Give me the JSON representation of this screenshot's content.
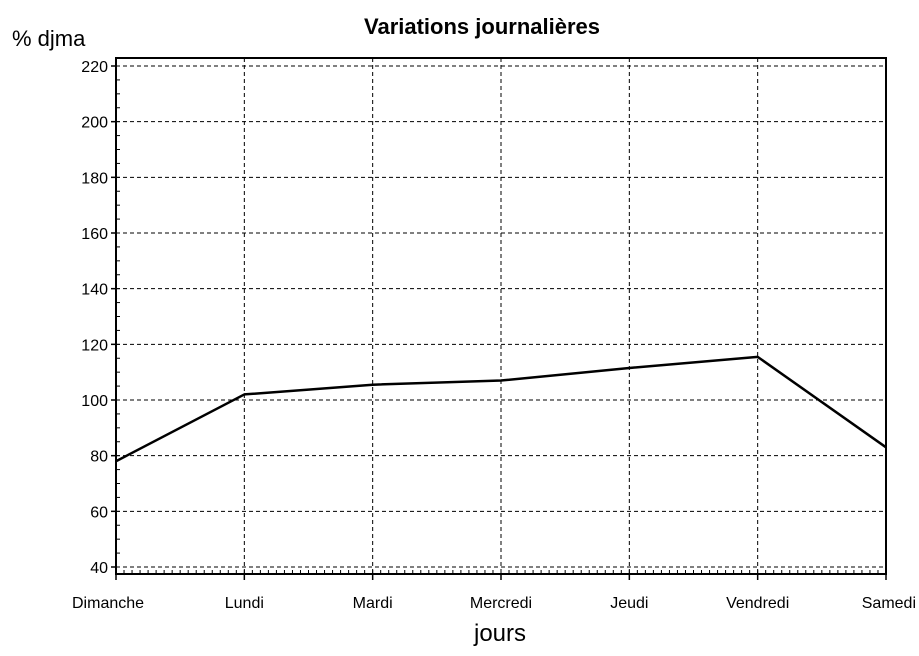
{
  "chart_data": {
    "type": "line",
    "title": "Variations journalières",
    "ylabel": "% djma",
    "xlabel": "jours",
    "categories": [
      "Dimanche",
      "Lundi",
      "Mardi",
      "Mercredi",
      "Jeudi",
      "Vendredi",
      "Samedi"
    ],
    "series": [
      {
        "values": [
          78,
          102,
          105.5,
          107,
          111.5,
          115.5,
          83
        ]
      }
    ],
    "ylim": [
      40,
      220
    ],
    "yticks": [
      40,
      60,
      80,
      100,
      120,
      140,
      160,
      180,
      200,
      220
    ],
    "grid": true,
    "line_color": "#000000"
  }
}
